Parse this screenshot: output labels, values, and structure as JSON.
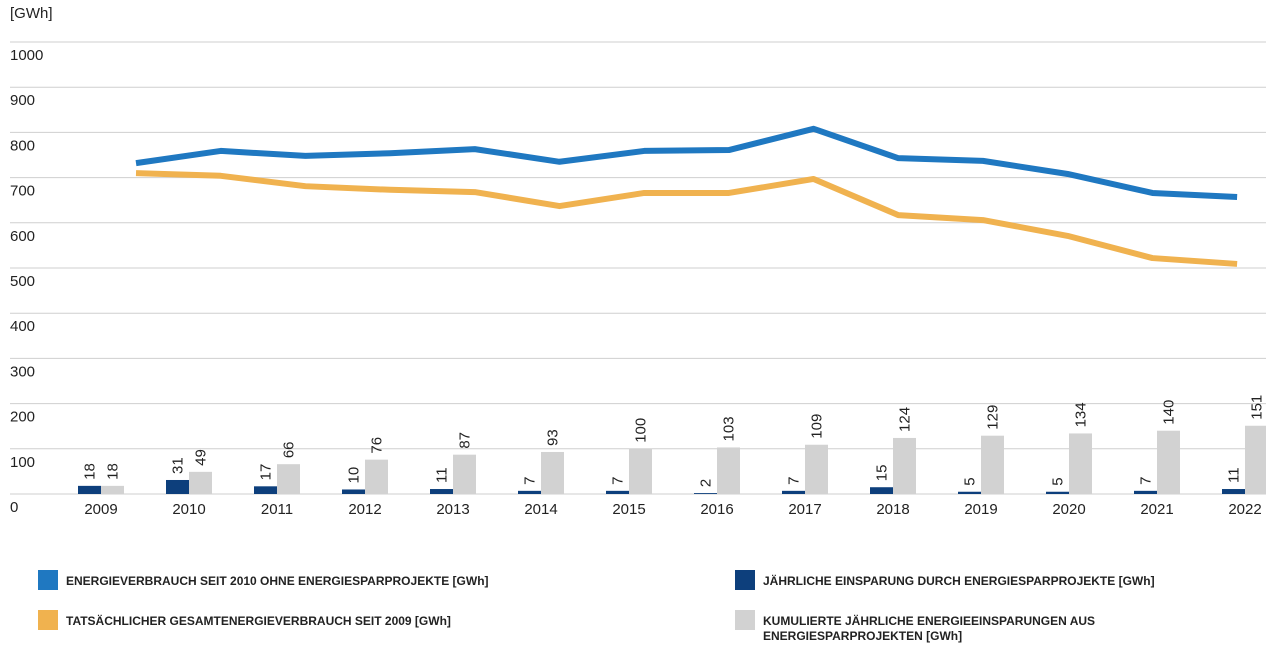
{
  "chart_data": {
    "type": "bar",
    "ylabel": "[GWh]",
    "categories": [
      "2009",
      "2010",
      "2011",
      "2012",
      "2013",
      "2014",
      "2015",
      "2016",
      "2017",
      "2018",
      "2019",
      "2020",
      "2021",
      "2022"
    ],
    "ylim": [
      0,
      1000
    ],
    "yticks": [
      0,
      100,
      200,
      300,
      400,
      500,
      600,
      700,
      800,
      900,
      1000
    ],
    "grid": true,
    "legend": "bottom",
    "series": [
      {
        "name": "ENERGIEVERBRAUCH SEIT 2010 OHNE ENERGIESPARPROJEKTE [GWh]",
        "type": "line",
        "color": "#1f78c1",
        "values": [
          732,
          759,
          748,
          754,
          763,
          735,
          759,
          761,
          808,
          743,
          737,
          708,
          666,
          657
        ]
      },
      {
        "name": "TATSÄCHLICHER GESAMTENERGIEVERBRAUCH SEIT 2009 [GWh]",
        "type": "line",
        "color": "#f0b24f",
        "values": [
          710,
          704,
          681,
          673,
          668,
          637,
          666,
          666,
          697,
          617,
          606,
          571,
          522,
          509
        ]
      },
      {
        "name": "JÄHRLICHE EINSPARUNG DURCH ENERGIESPARPROJEKTE [GWh]",
        "type": "bar",
        "color": "#0d3f7c",
        "values": [
          18,
          31,
          17,
          10,
          11,
          7,
          7,
          2,
          7,
          15,
          5,
          5,
          7,
          11
        ]
      },
      {
        "name": "KUMULIERTE JÄHRLICHE ENERGIEEINSPARUNGEN AUS ENERGIESPARPROJEKTEN [GWh]",
        "type": "bar",
        "color": "#d2d2d2",
        "values": [
          18,
          49,
          66,
          76,
          87,
          93,
          100,
          103,
          109,
          124,
          129,
          134,
          140,
          151
        ]
      }
    ]
  }
}
